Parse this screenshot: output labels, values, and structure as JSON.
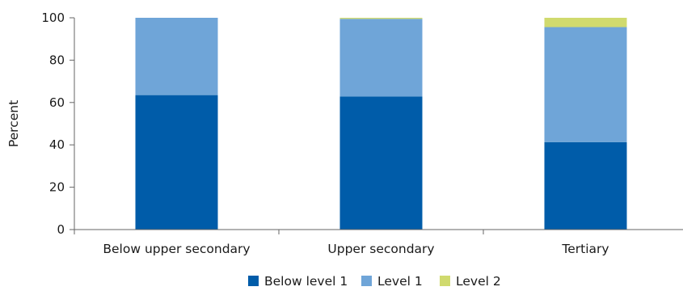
{
  "chart_data": {
    "type": "bar",
    "stacked": true,
    "categories": [
      "Below upper secondary",
      "Upper secondary",
      "Tertiary"
    ],
    "series": [
      {
        "name": "Below level 1",
        "color": "#005ca9",
        "values": [
          63.5,
          62.8,
          41.3
        ]
      },
      {
        "name": "Level 1",
        "color": "#6fa5d8",
        "values": [
          36.5,
          36.7,
          54.3
        ]
      },
      {
        "name": "Level 2",
        "color": "#d0da6e",
        "values": [
          0,
          0.5,
          4.4
        ]
      }
    ],
    "title": "",
    "xlabel": "",
    "ylabel": "Percent",
    "ylim": [
      0,
      100
    ],
    "yticks": [
      0,
      20,
      40,
      60,
      80,
      100
    ],
    "ytick_labels": [
      "0",
      "20",
      "40",
      "60",
      "80",
      "100"
    ],
    "grid": false,
    "legend_position": "bottom"
  }
}
